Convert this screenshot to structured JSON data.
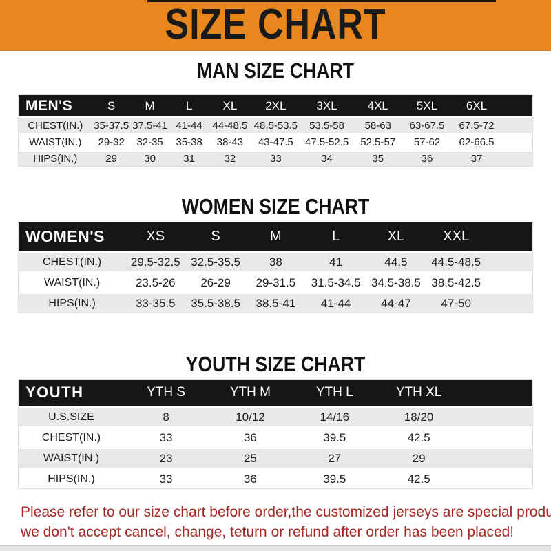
{
  "banner": {
    "title": "SIZE CHART"
  },
  "colors": {
    "banner_orange": "#E8871E",
    "header_bar_black": "#161616",
    "row_stripe_gray": "#E9E9E9",
    "footer_red": "#A52A26"
  },
  "sections": [
    {
      "heading": "MAN SIZE CHART",
      "table": {
        "header": [
          "MEN'S",
          "S",
          "M",
          "L",
          "XL",
          "2XL",
          "3XL",
          "4XL",
          "5XL",
          "6XL"
        ],
        "rows": [
          {
            "label": "CHEST(IN.)",
            "values": [
              "35-37.5",
              "37.5-41",
              "41-44",
              "44-48.5",
              "48.5-53.5",
              "53.5-58",
              "58-63",
              "63-67.5",
              "67.5-72"
            ]
          },
          {
            "label": "WAIST(IN.)",
            "values": [
              "29-32",
              "32-35",
              "35-38",
              "38-43",
              "43-47.5",
              "47.5-52.5",
              "52.5-57",
              "57-62",
              "62-66.5"
            ]
          },
          {
            "label": "HIPS(IN.)",
            "values": [
              "29",
              "30",
              "31",
              "32",
              "33",
              "34",
              "35",
              "36",
              "37"
            ]
          }
        ]
      }
    },
    {
      "heading": "WOMEN SIZE CHART",
      "table": {
        "header": [
          "WOMEN'S",
          "XS",
          "S",
          "M",
          "L",
          "XL",
          "XXL"
        ],
        "rows": [
          {
            "label": "CHEST(IN.)",
            "values": [
              "29.5-32.5",
              "32.5-35.5",
              "38",
              "41",
              "44.5",
              "44.5-48.5"
            ]
          },
          {
            "label": "WAIST(IN.)",
            "values": [
              "23.5-26",
              "26-29",
              "29-31.5",
              "31.5-34.5",
              "34.5-38.5",
              "38.5-42.5"
            ]
          },
          {
            "label": "HIPS(IN.)",
            "values": [
              "33-35.5",
              "35.5-38.5",
              "38.5-41",
              "41-44",
              "44-47",
              "47-50"
            ]
          }
        ]
      }
    },
    {
      "heading": "YOUTH SIZE CHART",
      "table": {
        "header": [
          "YOUTH",
          "YTH S",
          "YTH M",
          "YTH L",
          "YTH XL"
        ],
        "rows": [
          {
            "label": "U.S.SIZE",
            "values": [
              "8",
              "10/12",
              "14/16",
              "18/20"
            ]
          },
          {
            "label": "CHEST(IN.)",
            "values": [
              "33",
              "36",
              "39.5",
              "42.5"
            ]
          },
          {
            "label": "WAIST(IN.)",
            "values": [
              "23",
              "25",
              "27",
              "29"
            ]
          },
          {
            "label": "HIPS(IN.)",
            "values": [
              "33",
              "36",
              "39.5",
              "42.5"
            ]
          }
        ]
      }
    }
  ],
  "footer": {
    "line1": "Please refer to our size chart before order,the customized jerseys are special products,",
    "line2": "we don't accept cancel, change, teturn or refund after order has been placed!"
  }
}
